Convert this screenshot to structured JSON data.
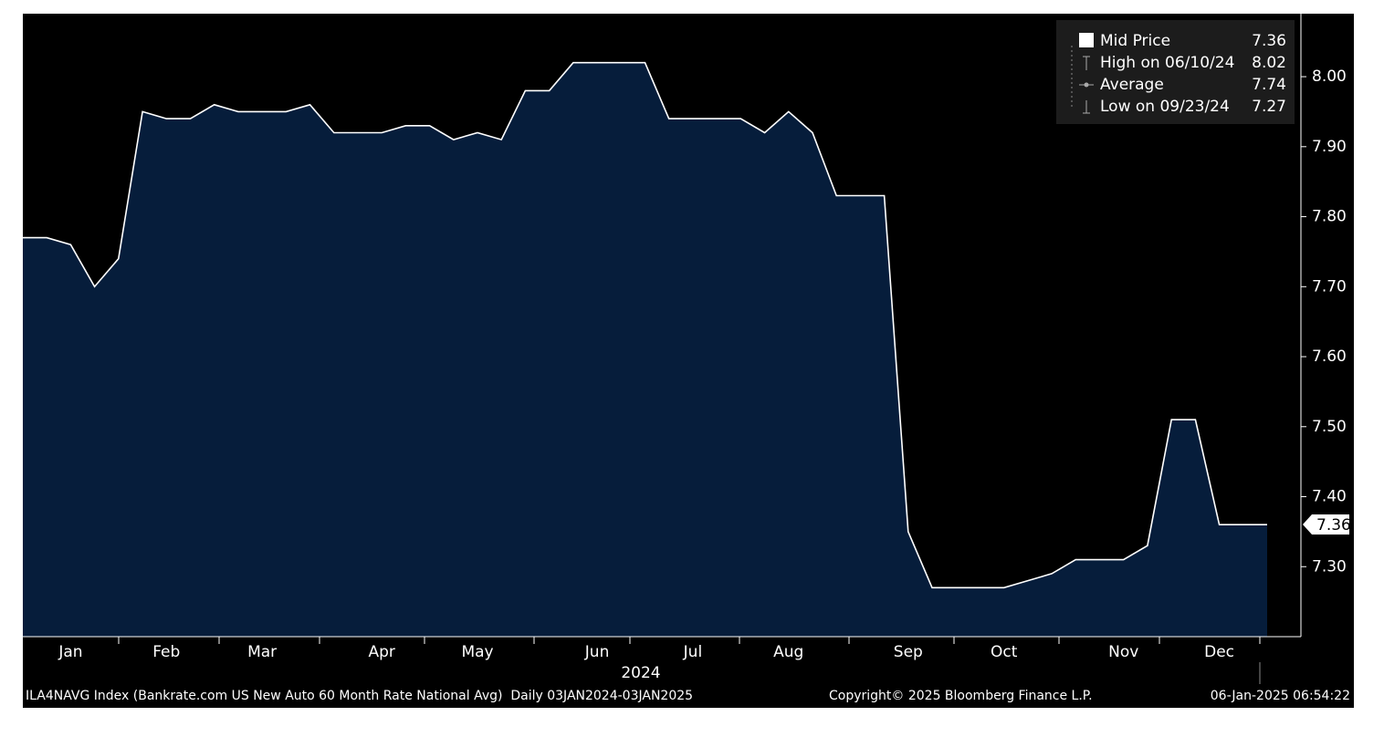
{
  "chart_data": {
    "type": "area",
    "categories": [
      null,
      null,
      "Jan",
      null,
      null,
      null,
      "Feb",
      null,
      null,
      null,
      "Mar",
      null,
      null,
      null,
      null,
      "Apr",
      null,
      null,
      null,
      "May",
      null,
      null,
      null,
      null,
      "Jun",
      null,
      null,
      null,
      "Jul",
      null,
      null,
      null,
      "Aug",
      null,
      null,
      null,
      null,
      "Sep",
      null,
      null,
      null,
      "Oct",
      null,
      null,
      null,
      null,
      "Nov",
      null,
      null,
      null,
      "Dec",
      null,
      null
    ],
    "x_label": "2024",
    "series": [
      {
        "name": "Mid Price",
        "color": "#ffffff",
        "fill": "#061d3b",
        "values": [
          7.77,
          7.77,
          7.76,
          7.7,
          7.74,
          7.95,
          7.94,
          7.94,
          7.96,
          7.95,
          7.95,
          7.95,
          7.96,
          7.92,
          7.92,
          7.92,
          7.93,
          7.93,
          7.91,
          7.92,
          7.91,
          7.98,
          7.98,
          8.02,
          8.02,
          8.02,
          8.02,
          7.94,
          7.94,
          7.94,
          7.94,
          7.92,
          7.95,
          7.92,
          7.83,
          7.83,
          7.83,
          7.35,
          7.27,
          7.27,
          7.27,
          7.27,
          7.28,
          7.29,
          7.31,
          7.31,
          7.31,
          7.33,
          7.51,
          7.51,
          7.36,
          7.36,
          7.36
        ]
      }
    ],
    "legend_stats": [
      {
        "label": "Mid Price",
        "value": "7.36"
      },
      {
        "label": "High on 06/10/24",
        "value": "8.02"
      },
      {
        "label": "Average",
        "value": "7.74"
      },
      {
        "label": "Low on 09/23/24",
        "value": "7.27"
      }
    ],
    "ylim": [
      7.2,
      8.09
    ],
    "yticks": [
      {
        "value": 7.3,
        "label": "7.30"
      },
      {
        "value": 7.4,
        "label": "7.40"
      },
      {
        "value": 7.5,
        "label": "7.50"
      },
      {
        "value": 7.6,
        "label": "7.60"
      },
      {
        "value": 7.7,
        "label": "7.70"
      },
      {
        "value": 7.8,
        "label": "7.80"
      },
      {
        "value": 7.9,
        "label": "7.90"
      },
      {
        "value": 8.0,
        "label": "8.00"
      }
    ],
    "footer": {
      "description": "ILA4NAVG Index (Bankrate.com US New Auto 60 Month Rate National Avg)  Daily 03JAN2024-03JAN2025",
      "copyright": "Copyright© 2025 Bloomberg Finance L.P.",
      "timestamp": "06-Jan-2025 06:54:22"
    }
  }
}
